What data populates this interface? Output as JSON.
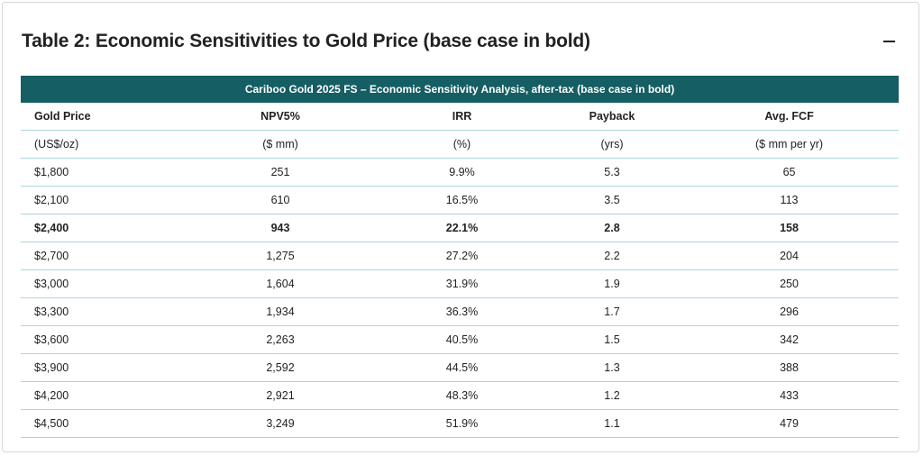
{
  "panel": {
    "title": "Table 2: Economic Sensitivities to Gold Price (base case in bold)",
    "collapse_icon": "minus-icon"
  },
  "table": {
    "caption": "Cariboo Gold 2025 FS – Economic Sensitivity Analysis, after-tax (base case in bold)",
    "headers": [
      "Gold Price",
      "NPV5%",
      "IRR",
      "Payback",
      "Avg. FCF"
    ],
    "units": [
      "(US$/oz)",
      "($ mm)",
      "(%)",
      "(yrs)",
      "($ mm per yr)"
    ],
    "rows": [
      {
        "cells": [
          "$1,800",
          "251",
          "9.9%",
          "5.3",
          "65"
        ],
        "base": false
      },
      {
        "cells": [
          "$2,100",
          "610",
          "16.5%",
          "3.5",
          "113"
        ],
        "base": false
      },
      {
        "cells": [
          "$2,400",
          "943",
          "22.1%",
          "2.8",
          "158"
        ],
        "base": true
      },
      {
        "cells": [
          "$2,700",
          "1,275",
          "27.2%",
          "2.2",
          "204"
        ],
        "base": false
      },
      {
        "cells": [
          "$3,000",
          "1,604",
          "31.9%",
          "1.9",
          "250"
        ],
        "base": false
      },
      {
        "cells": [
          "$3,300",
          "1,934",
          "36.3%",
          "1.7",
          "296"
        ],
        "base": false
      },
      {
        "cells": [
          "$3,600",
          "2,263",
          "40.5%",
          "1.5",
          "342"
        ],
        "base": false
      },
      {
        "cells": [
          "$3,900",
          "2,592",
          "44.5%",
          "1.3",
          "388"
        ],
        "base": false
      },
      {
        "cells": [
          "$4,200",
          "2,921",
          "48.3%",
          "1.2",
          "433"
        ],
        "base": false
      },
      {
        "cells": [
          "$4,500",
          "3,249",
          "51.9%",
          "1.1",
          "479"
        ],
        "base": false
      }
    ]
  },
  "colors": {
    "caption_bg": "#155e63",
    "row_border": "#a9d6dd"
  }
}
